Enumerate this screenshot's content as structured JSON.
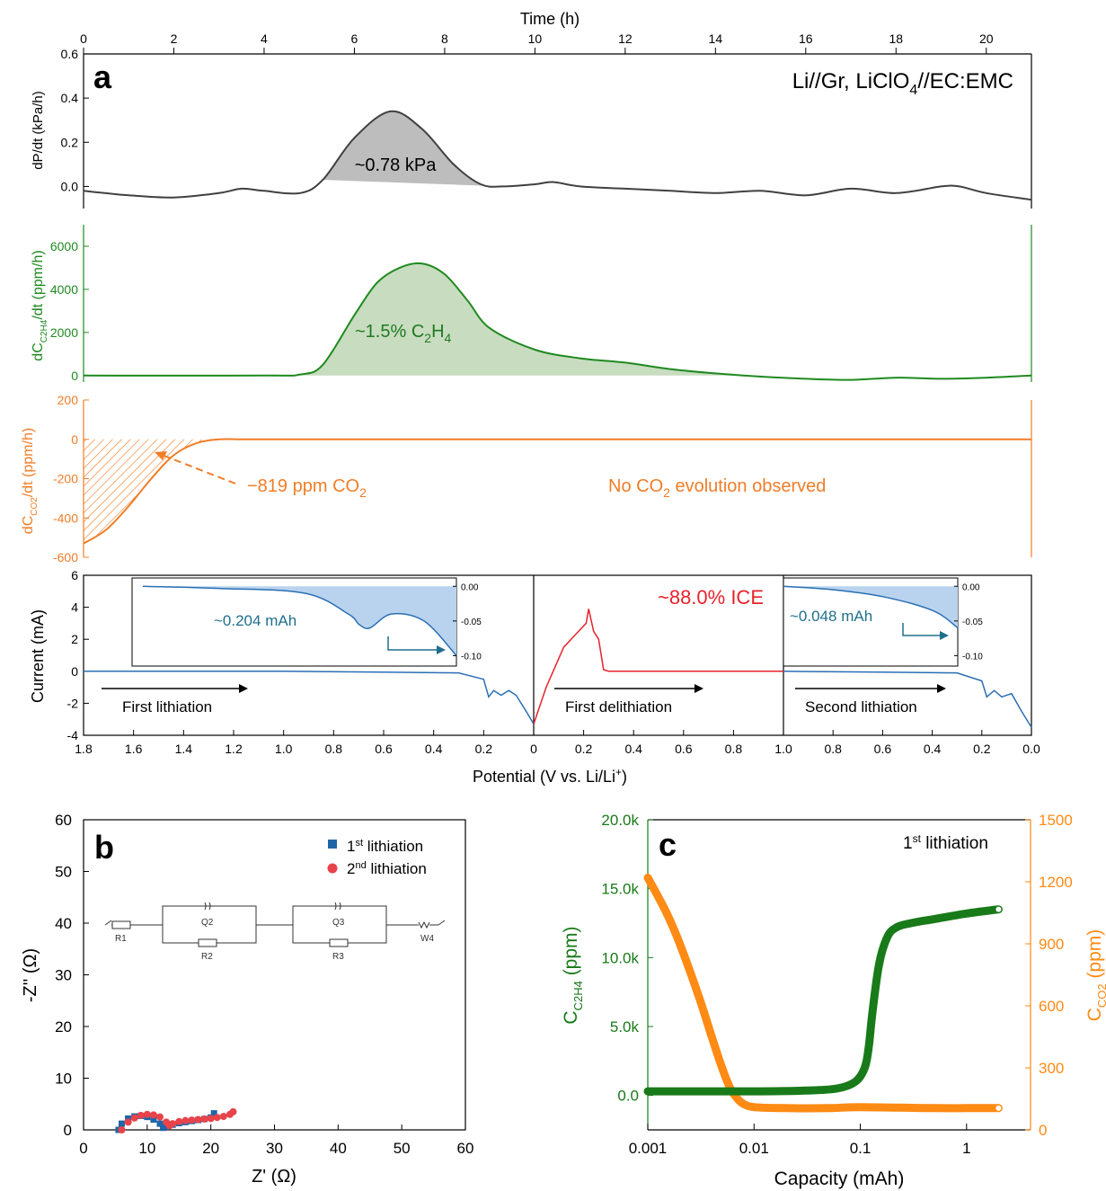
{
  "colors": {
    "black": "#000000",
    "pressure": "#404040",
    "pressure_fill": "#bdbdbd",
    "ethylene": "#1f8a1f",
    "ethylene_fill": "#c8dcc0",
    "co2": "#f07d28",
    "current": "#2a6fb5",
    "current_fill": "#b9d3ee",
    "delith": "#e8222b",
    "ice": "#e8222b",
    "annot_blue": "#1f6f8b",
    "eis_1": "#1f66a8",
    "eis_2": "#e8434a",
    "c_green": "#197a19",
    "c_orange": "#ff8a14"
  },
  "panel_a": {
    "label": "a",
    "top_axis": {
      "label": "Time (h)",
      "ticks": [
        "0",
        "2",
        "4",
        "6",
        "8",
        "10",
        "12",
        "14",
        "16",
        "18",
        "20"
      ]
    },
    "bottom_axis": {
      "label": "Potential (V vs. Li/Li",
      "label_sup": "+",
      "label_end": ")"
    },
    "legend": {
      "main": "Li//Gr, LiClO",
      "sub": "4",
      "end": "//EC:EMC"
    },
    "pressure": {
      "ylabel": "dP/dt (kPa/h)",
      "yticks": [
        "0.6",
        "0.4",
        "0.2",
        "0.0"
      ],
      "annotation": "~0.78 kPa"
    },
    "ethylene": {
      "ylabel_main": "dC",
      "ylabel_sub": "C2H4",
      "ylabel_end": "/dt (ppm/h)",
      "yticks": [
        "6000",
        "4000",
        "2000",
        "0"
      ],
      "annotation_main": "~1.5% C",
      "annotation_sub1": "2",
      "annotation_mid": "H",
      "annotation_sub2": "4"
    },
    "co2": {
      "ylabel_main": "dC",
      "ylabel_sub": "CO2",
      "ylabel_end": "/dt (ppm/h)",
      "yticks": [
        "200",
        "0",
        "-200",
        "-400",
        "-600"
      ],
      "annotation_main": "−819 ppm CO",
      "annotation_sub": "2",
      "note_main": "No CO",
      "note_sub": "2",
      "note_end": " evolution observed"
    },
    "current": {
      "ylabel": "Current (mA)",
      "yticks": [
        "6",
        "4",
        "2",
        "0",
        "-2",
        "-4"
      ],
      "seg1_xticks": [
        "1.8",
        "1.6",
        "1.4",
        "1.2",
        "1.0",
        "0.8",
        "0.6",
        "0.4",
        "0.2",
        "0"
      ],
      "seg2_xticks": [
        "0",
        "0.2",
        "0.4",
        "0.6",
        "0.8",
        "1.0"
      ],
      "seg3_xticks": [
        "1.0",
        "0.8",
        "0.6",
        "0.4",
        "0.2",
        "0.0"
      ],
      "first_lithiation": "First lithiation",
      "first_delithiation": "First delithiation",
      "second_lithiation": "Second lithiation",
      "ice": "~88.0% ICE",
      "inset1": {
        "label": "~0.204 mAh",
        "yticks": [
          "0.00",
          "-0.05",
          "-0.10"
        ]
      },
      "inset2": {
        "label": "~0.048 mAh",
        "yticks": [
          "0.00",
          "-0.05",
          "-0.10"
        ]
      }
    }
  },
  "panel_b": {
    "label": "b",
    "xlabel": "Z' (Ω)",
    "ylabel": "-Z'' (Ω)",
    "xticks": [
      "0",
      "10",
      "20",
      "30",
      "40",
      "50",
      "60"
    ],
    "yticks": [
      "60",
      "50",
      "40",
      "30",
      "20",
      "10",
      "0"
    ],
    "legend": [
      {
        "pre": "1",
        "sup": "st",
        "post": " lithiation"
      },
      {
        "pre": "2",
        "sup": "nd",
        "post": " lithiation"
      }
    ],
    "circuit": [
      "R1",
      "Q2",
      "R2",
      "Q3",
      "R3",
      "W4"
    ]
  },
  "panel_c": {
    "label": "c",
    "xlabel": "Capacity (mAh)",
    "xticks": [
      "0.001",
      "0.01",
      "0.1",
      "1"
    ],
    "yleft_ticks": [
      "20.0k",
      "15.0k",
      "10.0k",
      "5.0k",
      "0.0"
    ],
    "yright_ticks": [
      "1500",
      "1200",
      "900",
      "600",
      "300",
      "0"
    ],
    "ylabel_left_main": "C",
    "ylabel_left_sub": "C2H4",
    "ylabel_left_end": " (ppm)",
    "ylabel_right_main": "C",
    "ylabel_right_sub": "CO2",
    "ylabel_right_end": " (ppm)",
    "annotation": {
      "pre": "1",
      "sup": "st",
      "post": " lithiation"
    }
  },
  "chart_data": [
    {
      "type": "line",
      "panel": "a",
      "series": [
        {
          "name": "dP/dt",
          "x": [
            0,
            1,
            2,
            3,
            3.5,
            4,
            4.8,
            5.3,
            6,
            6.8,
            7.5,
            8.2,
            8.8,
            9.3,
            10,
            10.4,
            11,
            12,
            13,
            14,
            15,
            16,
            17,
            18,
            19,
            19.4,
            20,
            21
          ],
          "y": [
            -0.02,
            -0.04,
            -0.05,
            -0.03,
            -0.01,
            -0.02,
            -0.03,
            0.03,
            0.22,
            0.34,
            0.26,
            0.1,
            0.01,
            0.0,
            0.01,
            0.02,
            0.0,
            -0.01,
            -0.02,
            -0.03,
            -0.02,
            -0.04,
            -0.01,
            -0.03,
            0.0,
            0.0,
            -0.03,
            -0.06
          ]
        },
        {
          "name": "dC_C2H4/dt",
          "x": [
            0,
            4,
            4.8,
            5.3,
            6,
            6.5,
            7,
            7.5,
            8,
            8.5,
            9,
            10,
            11,
            12,
            13,
            14,
            15,
            16,
            17,
            18,
            19,
            20,
            21
          ],
          "y": [
            0,
            0,
            50,
            500,
            2800,
            4300,
            5000,
            5200,
            4700,
            3500,
            2200,
            1200,
            800,
            600,
            300,
            100,
            -50,
            -150,
            -200,
            -100,
            -150,
            -100,
            0
          ]
        },
        {
          "name": "dC_CO2/dt",
          "x": [
            0,
            0.5,
            1,
            1.5,
            2,
            2.5,
            3,
            3.5,
            4,
            6,
            8,
            10,
            12,
            14,
            16,
            18,
            20,
            21
          ],
          "y": [
            -530,
            -460,
            -340,
            -200,
            -80,
            -20,
            0,
            0,
            0,
            0,
            0,
            0,
            0,
            0,
            0,
            0,
            0,
            0
          ]
        }
      ],
      "title": "Li//Gr, LiClO4//EC:EMC",
      "xlabel": "Time (h)",
      "xlim": [
        0,
        21
      ]
    },
    {
      "type": "line",
      "panel": "a-current",
      "series": [
        {
          "name": "First lithiation",
          "x": [
            1.8,
            1.0,
            0.6,
            0.3,
            0.2,
            0.18,
            0.16,
            0.13,
            0.1,
            0.07,
            0.03,
            0.0
          ],
          "y": [
            0,
            0,
            -0.05,
            -0.1,
            -0.5,
            -1.6,
            -1.2,
            -1.5,
            -1.2,
            -1.5,
            -2.5,
            -3.3
          ]
        },
        {
          "name": "First delithiation",
          "x": [
            0,
            0.05,
            0.12,
            0.18,
            0.21,
            0.22,
            0.24,
            0.26,
            0.28,
            0.3,
            0.6,
            1.0
          ],
          "y": [
            -3.3,
            -1.0,
            1.5,
            2.5,
            3.0,
            3.9,
            2.5,
            2.0,
            0.1,
            0.0,
            0.0,
            0.0
          ]
        },
        {
          "name": "Second lithiation",
          "x": [
            1.0,
            0.6,
            0.3,
            0.2,
            0.18,
            0.15,
            0.12,
            0.08,
            0.04,
            0.0
          ],
          "y": [
            0,
            -0.05,
            -0.1,
            -0.6,
            -1.6,
            -1.2,
            -1.6,
            -1.4,
            -2.5,
            -3.5
          ]
        }
      ],
      "ylabel": "Current (mA)",
      "ylim": [
        -4,
        6
      ],
      "insets": [
        {
          "x": [
            1.75,
            1.4,
            1.0,
            0.8,
            0.75,
            0.7,
            0.6,
            0.45,
            0.3
          ],
          "y": [
            0,
            -0.003,
            -0.01,
            -0.04,
            -0.055,
            -0.06,
            -0.04,
            -0.05,
            -0.1
          ],
          "area_mAh": 0.204
        },
        {
          "x": [
            1.0,
            0.8,
            0.6,
            0.4,
            0.3
          ],
          "y": [
            0,
            -0.005,
            -0.015,
            -0.035,
            -0.06
          ],
          "area_mAh": 0.048
        }
      ]
    },
    {
      "type": "scatter",
      "panel": "b",
      "xlabel": "Z' (Ω)",
      "ylabel": "-Z'' (Ω)",
      "xlim": [
        0,
        60
      ],
      "ylim": [
        0,
        60
      ],
      "series": [
        {
          "name": "1st lithiation",
          "x": [
            5.5,
            6,
            7,
            8,
            9,
            10,
            11,
            12,
            12.5,
            13,
            14,
            15,
            16,
            17,
            18,
            19,
            20,
            20.5
          ],
          "y": [
            0,
            1.2,
            2.2,
            2.6,
            2.7,
            2.5,
            2.0,
            1.2,
            0.4,
            0.6,
            1.0,
            1.3,
            1.5,
            1.7,
            1.9,
            2.1,
            2.4,
            3.2
          ]
        },
        {
          "name": "2nd lithiation",
          "x": [
            6,
            7,
            8,
            9,
            10,
            11,
            12,
            13,
            13.5,
            14,
            15,
            16,
            17,
            18,
            19,
            20,
            21,
            22,
            23,
            23.5
          ],
          "y": [
            0,
            1.5,
            2.3,
            2.8,
            3.0,
            2.9,
            2.5,
            1.5,
            0.8,
            1.2,
            1.6,
            1.8,
            1.9,
            2.0,
            2.1,
            2.2,
            2.4,
            2.6,
            3.0,
            3.5
          ]
        }
      ]
    },
    {
      "type": "line",
      "panel": "c",
      "xlabel": "Capacity (mAh)",
      "xscale": "log",
      "xlim": [
        0.001,
        4
      ],
      "ylim_left": [
        -2500,
        20000
      ],
      "ylim_right": [
        0,
        1500
      ],
      "series": [
        {
          "name": "C_C2H4",
          "axis": "left",
          "x": [
            0.001,
            0.01,
            0.03,
            0.06,
            0.09,
            0.11,
            0.12,
            0.13,
            0.15,
            0.18,
            0.22,
            0.3,
            0.5,
            1,
            2
          ],
          "y": [
            300,
            300,
            350,
            500,
            1000,
            2000,
            3500,
            6000,
            9500,
            11500,
            12200,
            12500,
            12800,
            13200,
            13500
          ]
        },
        {
          "name": "C_CO2",
          "axis": "right",
          "x": [
            0.001,
            0.0015,
            0.002,
            0.003,
            0.004,
            0.005,
            0.006,
            0.007,
            0.008,
            0.01,
            0.02,
            0.05,
            0.1,
            0.5,
            1,
            2
          ],
          "y": [
            1220,
            1050,
            900,
            650,
            450,
            300,
            200,
            150,
            125,
            110,
            105,
            105,
            110,
            105,
            105,
            105
          ]
        }
      ]
    }
  ]
}
